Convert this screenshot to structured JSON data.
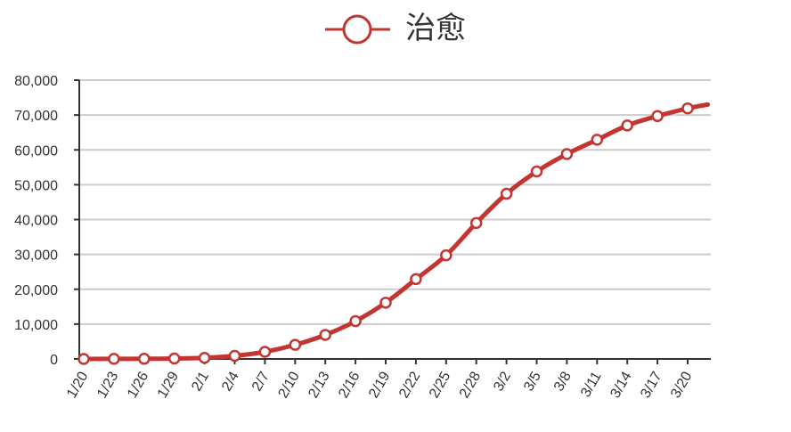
{
  "chart_data": {
    "type": "line",
    "title": "",
    "xlabel": "",
    "ylabel": "",
    "legend": {
      "position": "top-center"
    },
    "grid": {
      "horizontal": true,
      "vertical": false
    },
    "ylim": [
      0,
      80000
    ],
    "y_ticks": [
      0,
      10000,
      20000,
      30000,
      40000,
      50000,
      60000,
      70000,
      80000
    ],
    "y_tick_labels": [
      "0",
      "10,000",
      "20,000",
      "30,000",
      "40,000",
      "50,000",
      "60,000",
      "70,000",
      "80,000"
    ],
    "x_tick_labels": [
      "1/20",
      "1/23",
      "1/26",
      "1/29",
      "2/1",
      "2/4",
      "2/7",
      "2/10",
      "2/13",
      "2/16",
      "2/19",
      "2/22",
      "2/25",
      "2/28",
      "3/2",
      "3/5",
      "3/8",
      "3/11",
      "3/14",
      "3/17",
      "3/20"
    ],
    "series": [
      {
        "name": "治愈",
        "color": "#c23531",
        "marker": "open-circle",
        "x": [
          "1/20",
          "1/23",
          "1/26",
          "1/29",
          "2/1",
          "2/4",
          "2/7",
          "2/10",
          "2/13",
          "2/16",
          "2/19",
          "2/22",
          "2/25",
          "2/28",
          "3/2",
          "3/5",
          "3/8",
          "3/11",
          "3/14",
          "3/17",
          "3/20",
          "3/22"
        ],
        "y": [
          0,
          34,
          49,
          133,
          328,
          892,
          2050,
          4050,
          6900,
          10850,
          16150,
          22900,
          29750,
          39000,
          47400,
          53800,
          58800,
          62900,
          67000,
          69700,
          71900,
          73000
        ],
        "markers": [
          true,
          true,
          true,
          true,
          true,
          true,
          true,
          true,
          true,
          true,
          true,
          true,
          true,
          true,
          true,
          true,
          true,
          true,
          true,
          true,
          true,
          false
        ]
      }
    ]
  }
}
